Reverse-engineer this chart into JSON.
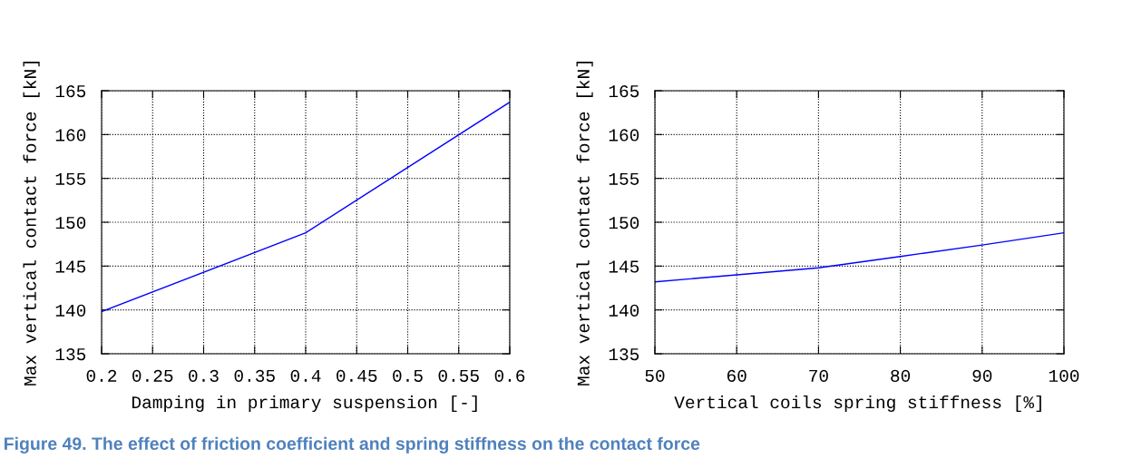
{
  "chart_data": [
    {
      "type": "line",
      "xlabel": "Damping in primary suspension [-]",
      "ylabel": "Max vertical contact force [kN]",
      "x": [
        0.2,
        0.4,
        0.6
      ],
      "series": [
        {
          "color": "#0000ff",
          "values": [
            139.8,
            148.8,
            163.7
          ]
        }
      ],
      "xlim": [
        0.2,
        0.6
      ],
      "xticks": [
        0.2,
        0.25,
        0.3,
        0.35,
        0.4,
        0.45,
        0.5,
        0.55,
        0.6
      ],
      "ylim": [
        135,
        165
      ],
      "yticks": [
        135,
        140,
        145,
        150,
        155,
        160,
        165
      ],
      "grid": true,
      "legend": false,
      "annotations": [
        "Figure 49. The effect of friction coefficient and spring stiffness on the contact force"
      ]
    },
    {
      "type": "line",
      "xlabel": "Vertical coils spring stiffness [%]",
      "ylabel": "Max vertical contact force [kN]",
      "x": [
        50,
        60,
        70,
        80,
        90,
        100
      ],
      "series": [
        {
          "color": "#0000ff",
          "values": [
            143.2,
            144.0,
            144.8,
            146.1,
            147.4,
            148.8
          ]
        }
      ],
      "xlim": [
        50,
        100
      ],
      "xticks": [
        50,
        60,
        70,
        80,
        90,
        100
      ],
      "ylim": [
        135,
        165
      ],
      "yticks": [
        135,
        140,
        145,
        150,
        155,
        160,
        165
      ],
      "grid": true,
      "legend": false
    }
  ]
}
